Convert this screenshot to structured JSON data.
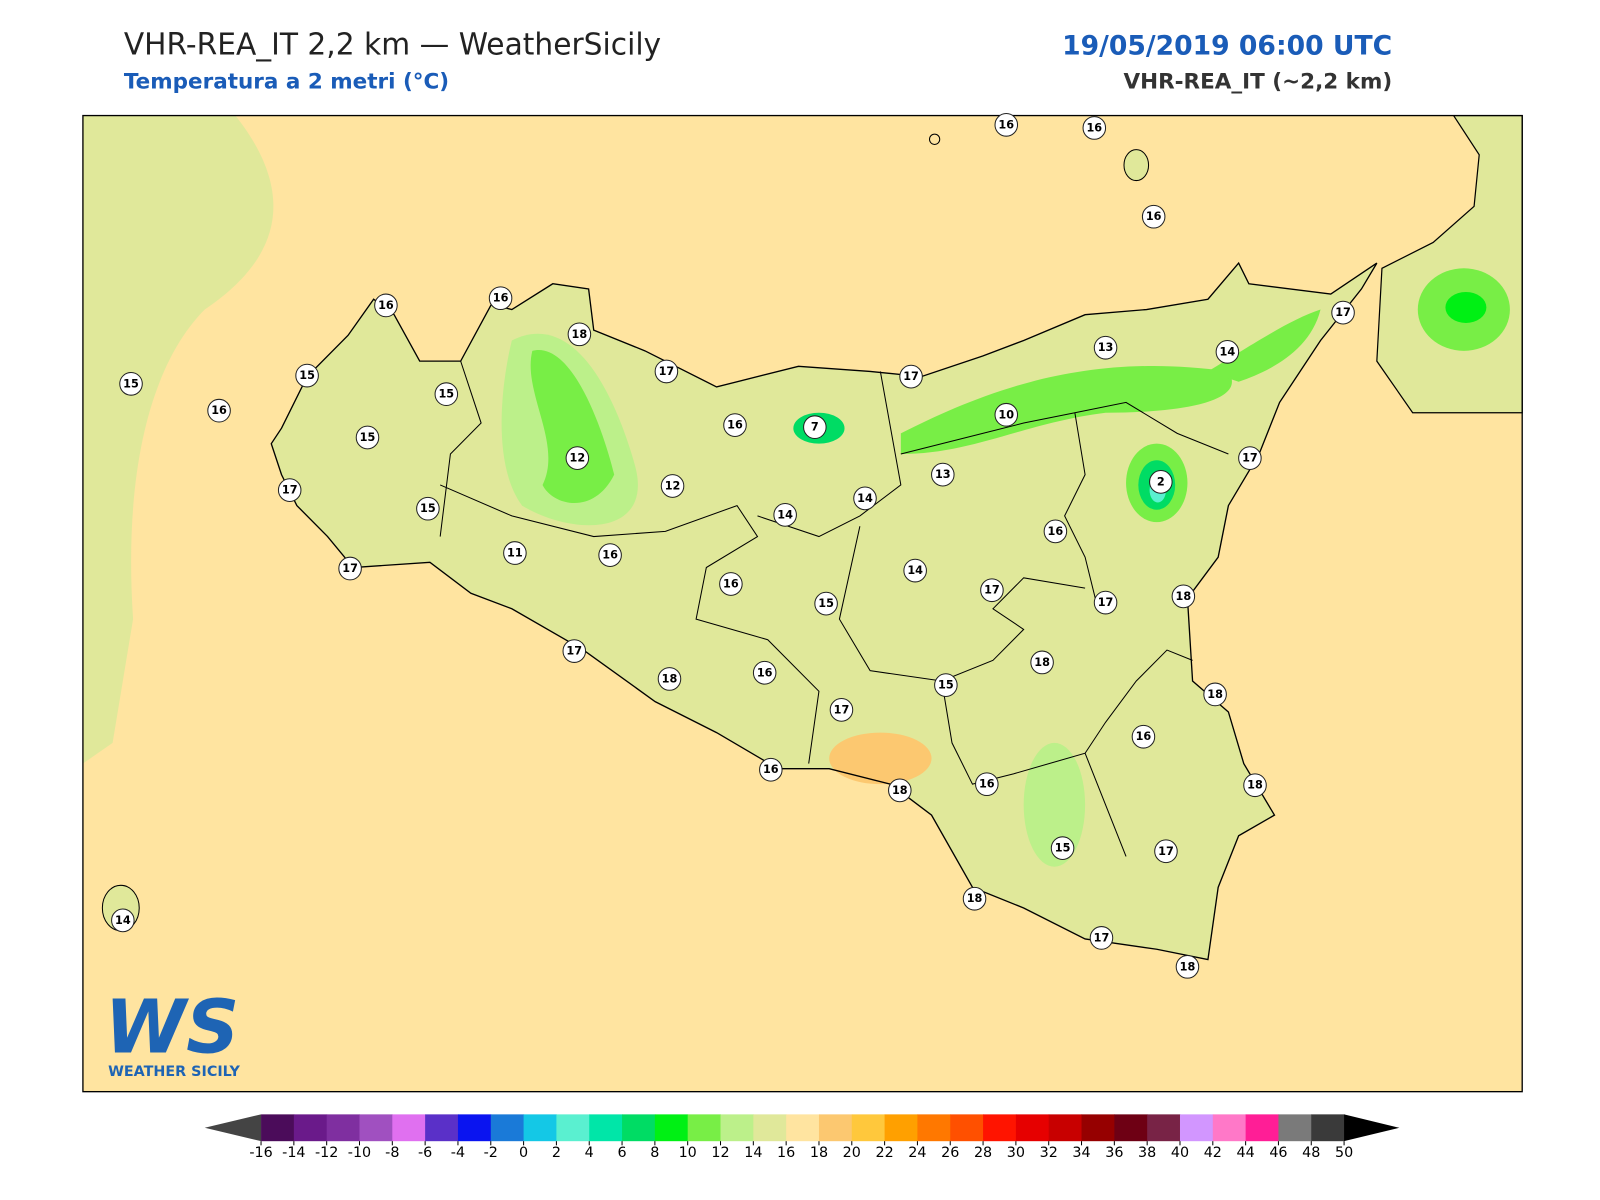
{
  "header": {
    "title": "VHR-REA_IT 2,2 km — WeatherSicily",
    "subtitle": "Temperatura a 2 metri (°C)",
    "date": "19/05/2019 06:00 UTC",
    "model": "VHR-REA_IT (~2,2 km)"
  },
  "logo": {
    "mark": "WS",
    "name": "WEATHER SICILY"
  },
  "map": {
    "background": "#ffe4a0",
    "labels": [
      16,
      16,
      16,
      16,
      16,
      18,
      17,
      15,
      15,
      15,
      16,
      15,
      16,
      7,
      17,
      13,
      14,
      17,
      10,
      12,
      12,
      14,
      14,
      13,
      2,
      17,
      17,
      15,
      11,
      16,
      16,
      17,
      16,
      15,
      14,
      17,
      17,
      18,
      17,
      18,
      16,
      17,
      15,
      18,
      18,
      16,
      16,
      18,
      16,
      18,
      15,
      17,
      18,
      17,
      18,
      14
    ]
  },
  "colorbar": {
    "ticks": [
      -16,
      -14,
      -12,
      -10,
      -8,
      -6,
      -4,
      -2,
      0,
      2,
      4,
      6,
      8,
      10,
      12,
      14,
      16,
      18,
      20,
      22,
      24,
      26,
      28,
      30,
      32,
      34,
      36,
      38,
      40,
      42,
      44,
      46,
      48,
      50
    ],
    "colors": [
      "#4b0c5a",
      "#6a1a8a",
      "#7f2fa0",
      "#a050c0",
      "#e070f0",
      "#5a30c8",
      "#0a14f0",
      "#1a7ad8",
      "#14c8e6",
      "#5af0d0",
      "#00e6a8",
      "#00dc64",
      "#00f014",
      "#78ee46",
      "#bcf08a",
      "#e0e89a",
      "#ffe4a0",
      "#fcc870",
      "#ffc83c",
      "#ffa000",
      "#ff7800",
      "#ff5000",
      "#ff1400",
      "#e60000",
      "#c80000",
      "#960000",
      "#6e0014",
      "#782346",
      "#d296ff",
      "#ff78c8",
      "#ff1e96",
      "#7a7a7a",
      "#3a3a3a"
    ],
    "under": "#444444",
    "over": "#000000"
  }
}
